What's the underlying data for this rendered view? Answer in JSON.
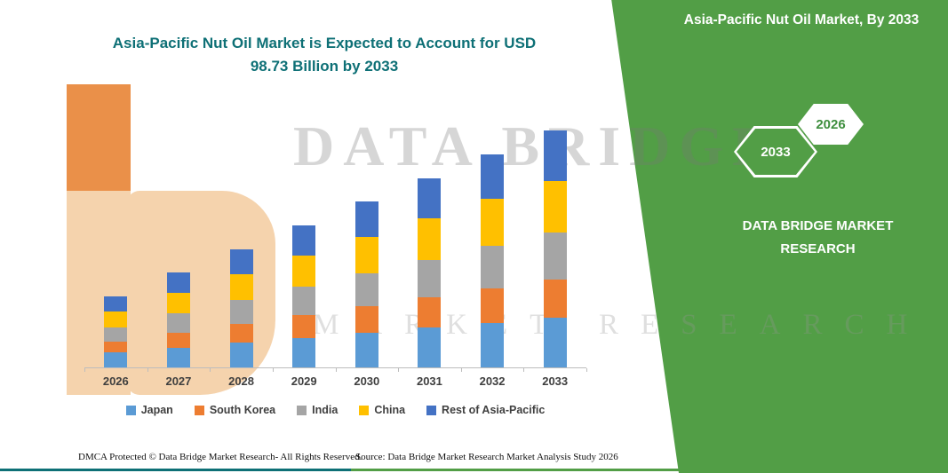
{
  "title": "Asia-Pacific Nut Oil Market is Expected to Account for USD 98.73 Billion by 2033",
  "banner": {
    "title": "Asia-Pacific Nut Oil Market, By 2033",
    "hex_back": "2033",
    "hex_front": "2026",
    "brand_line1": "DATA BRIDGE MARKET",
    "brand_line2": "RESEARCH"
  },
  "watermark": {
    "line1": "DATA BRIDGE",
    "line2": "MARKET RESEARCH"
  },
  "footer": {
    "left": "DMCA Protected © Data Bridge Market Research-  All Rights Reserved.",
    "source": "Source: Data Bridge Market Research  Market Analysis Study 2026"
  },
  "colors": {
    "title_teal": "#0e7076",
    "banner_green": "#529e46",
    "logo_peach": "#f5d3ad",
    "logo_orange": "#ea9049"
  },
  "chart_data": {
    "type": "bar",
    "stacked": true,
    "title": "Asia-Pacific Nut Oil Market is Expected to Account for USD 98.73 Billion by 2033",
    "xlabel": "",
    "ylabel": "",
    "ylim": [
      0,
      100
    ],
    "grid": false,
    "legend_position": "bottom",
    "categories": [
      "2026",
      "2027",
      "2028",
      "2029",
      "2030",
      "2031",
      "2032",
      "2033"
    ],
    "series": [
      {
        "name": "Japan",
        "color": "#5B9BD5",
        "values": [
          6.2,
          8.3,
          10.4,
          12.4,
          14.5,
          16.6,
          18.7,
          20.7
        ]
      },
      {
        "name": "South Korea",
        "color": "#ED7D31",
        "values": [
          4.7,
          6.3,
          7.9,
          9.5,
          11.1,
          12.6,
          14.2,
          15.8
        ]
      },
      {
        "name": "India",
        "color": "#A5A5A5",
        "values": [
          5.9,
          7.9,
          9.9,
          11.8,
          13.8,
          15.8,
          17.8,
          19.7
        ]
      },
      {
        "name": "China",
        "color": "#FFC000",
        "values": [
          6.5,
          8.7,
          10.9,
          13.0,
          15.2,
          17.4,
          19.6,
          21.7
        ]
      },
      {
        "name": "Rest of Asia-Pacific",
        "color": "#4472C4",
        "values": [
          6.3,
          8.3,
          10.3,
          12.5,
          14.5,
          16.6,
          18.6,
          20.8
        ]
      }
    ],
    "totals": [
      29.6,
      39.5,
      49.4,
      59.2,
      69.1,
      79.0,
      88.9,
      98.73
    ]
  }
}
